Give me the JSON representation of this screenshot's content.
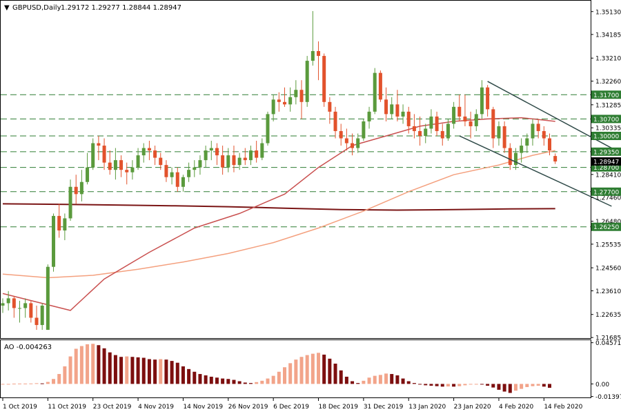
{
  "header": {
    "symbol": "GBPUSD,Daily",
    "ohlc": "1.29172 1.29277 1.28844 1.28947",
    "triangle_glyph": "▼"
  },
  "colors": {
    "bull": "#5a9a3c",
    "bear": "#e2522c",
    "ma_fast": "#c9504f",
    "ma_mid": "#f4a07e",
    "ma_slow": "#7a1414",
    "trend": "#2f4a48",
    "level": "#2e7d32",
    "ao_up": "#f2a48a",
    "ao_down": "#7d0f0f",
    "grid_border": "#000000"
  },
  "chart_data": [
    {
      "type": "candlestick",
      "title": "GBPUSD,Daily",
      "x_dates": [
        "1 Oct 2019",
        "11 Oct 2019",
        "23 Oct 2019",
        "4 Nov 2019",
        "14 Nov 2019",
        "26 Nov 2019",
        "6 Dec 2019",
        "18 Dec 2019",
        "31 Dec 2019",
        "13 Jan 2020",
        "23 Jan 2020",
        "4 Feb 2020",
        "14 Feb 2020"
      ],
      "ylim": [
        1.2166,
        1.3555
      ],
      "y_ticks": [
        "1.35130",
        "1.34185",
        "1.33210",
        "1.32260",
        "1.31285",
        "1.30335",
        "1.29360",
        "1.28410",
        "1.27460",
        "1.26480",
        "1.25535",
        "1.24560",
        "1.23610",
        "1.22635",
        "1.21685"
      ],
      "levels": [
        {
          "value": 1.317,
          "label": "1.31700"
        },
        {
          "value": 1.307,
          "label": "1.30700"
        },
        {
          "value": 1.3,
          "label": "1.30000"
        },
        {
          "value": 1.2935,
          "label": "1.29350"
        },
        {
          "value": 1.287,
          "label": "1.28700"
        },
        {
          "value": 1.2625,
          "label": "1.26250"
        },
        {
          "value": 1.277,
          "label": "1.27700"
        }
      ],
      "current_price": {
        "value": 1.28947,
        "label": "1.28947"
      },
      "ohlc": [
        [
          1.23,
          1.233,
          1.227,
          1.231
        ],
        [
          1.231,
          1.236,
          1.228,
          1.233
        ],
        [
          1.233,
          1.234,
          1.225,
          1.229
        ],
        [
          1.229,
          1.232,
          1.223,
          1.229
        ],
        [
          1.229,
          1.233,
          1.225,
          1.231
        ],
        [
          1.231,
          1.232,
          1.223,
          1.225
        ],
        [
          1.225,
          1.23,
          1.22,
          1.222
        ],
        [
          1.222,
          1.231,
          1.22,
          1.23
        ],
        [
          1.22,
          1.247,
          1.22,
          1.246
        ],
        [
          1.246,
          1.268,
          1.244,
          1.267
        ],
        [
          1.267,
          1.272,
          1.258,
          1.261
        ],
        [
          1.261,
          1.268,
          1.257,
          1.266
        ],
        [
          1.266,
          1.282,
          1.265,
          1.279
        ],
        [
          1.279,
          1.284,
          1.272,
          1.276
        ],
        [
          1.276,
          1.286,
          1.273,
          1.281
        ],
        [
          1.281,
          1.293,
          1.28,
          1.287
        ],
        [
          1.287,
          1.299,
          1.286,
          1.297
        ],
        [
          1.297,
          1.3,
          1.29,
          1.296
        ],
        [
          1.296,
          1.299,
          1.286,
          1.289
        ],
        [
          1.289,
          1.294,
          1.284,
          1.286
        ],
        [
          1.286,
          1.295,
          1.282,
          1.29
        ],
        [
          1.29,
          1.292,
          1.283,
          1.286
        ],
        [
          1.286,
          1.289,
          1.28,
          1.285
        ],
        [
          1.285,
          1.29,
          1.282,
          1.287
        ],
        [
          1.287,
          1.295,
          1.286,
          1.292
        ],
        [
          1.292,
          1.297,
          1.289,
          1.295
        ],
        [
          1.295,
          1.298,
          1.29,
          1.294
        ],
        [
          1.294,
          1.296,
          1.288,
          1.291
        ],
        [
          1.291,
          1.293,
          1.286,
          1.288
        ],
        [
          1.288,
          1.29,
          1.281,
          1.283
        ],
        [
          1.283,
          1.287,
          1.28,
          1.285
        ],
        [
          1.285,
          1.287,
          1.277,
          1.279
        ],
        [
          1.279,
          1.284,
          1.277,
          1.283
        ],
        [
          1.283,
          1.289,
          1.281,
          1.286
        ],
        [
          1.286,
          1.29,
          1.283,
          1.287
        ],
        [
          1.287,
          1.292,
          1.284,
          1.29
        ],
        [
          1.29,
          1.296,
          1.287,
          1.294
        ],
        [
          1.294,
          1.298,
          1.29,
          1.295
        ],
        [
          1.295,
          1.297,
          1.288,
          1.292
        ],
        [
          1.292,
          1.296,
          1.284,
          1.287
        ],
        [
          1.287,
          1.295,
          1.285,
          1.292
        ],
        [
          1.292,
          1.296,
          1.285,
          1.288
        ],
        [
          1.288,
          1.293,
          1.286,
          1.291
        ],
        [
          1.291,
          1.295,
          1.288,
          1.29
        ],
        [
          1.29,
          1.296,
          1.288,
          1.294
        ],
        [
          1.294,
          1.298,
          1.289,
          1.291
        ],
        [
          1.291,
          1.299,
          1.29,
          1.297
        ],
        [
          1.297,
          1.31,
          1.296,
          1.309
        ],
        [
          1.309,
          1.317,
          1.306,
          1.315
        ],
        [
          1.315,
          1.318,
          1.31,
          1.314
        ],
        [
          1.314,
          1.32,
          1.312,
          1.313
        ],
        [
          1.313,
          1.32,
          1.31,
          1.316
        ],
        [
          1.316,
          1.323,
          1.313,
          1.319
        ],
        [
          1.319,
          1.323,
          1.307,
          1.314
        ],
        [
          1.314,
          1.333,
          1.312,
          1.331
        ],
        [
          1.331,
          1.3515,
          1.329,
          1.335
        ],
        [
          1.335,
          1.339,
          1.323,
          1.333
        ],
        [
          1.333,
          1.334,
          1.312,
          1.314
        ],
        [
          1.314,
          1.316,
          1.305,
          1.31
        ],
        [
          1.31,
          1.312,
          1.299,
          1.302
        ],
        [
          1.302,
          1.305,
          1.296,
          1.299
        ],
        [
          1.299,
          1.303,
          1.294,
          1.297
        ],
        [
          1.297,
          1.301,
          1.292,
          1.295
        ],
        [
          1.295,
          1.301,
          1.293,
          1.299
        ],
        [
          1.299,
          1.307,
          1.298,
          1.306
        ],
        [
          1.306,
          1.312,
          1.303,
          1.31
        ],
        [
          1.31,
          1.328,
          1.309,
          1.326
        ],
        [
          1.326,
          1.327,
          1.314,
          1.315
        ],
        [
          1.315,
          1.32,
          1.306,
          1.309
        ],
        [
          1.309,
          1.316,
          1.307,
          1.313
        ],
        [
          1.313,
          1.319,
          1.306,
          1.308
        ],
        [
          1.308,
          1.313,
          1.305,
          1.31
        ],
        [
          1.31,
          1.312,
          1.301,
          1.304
        ],
        [
          1.304,
          1.309,
          1.299,
          1.302
        ],
        [
          1.302,
          1.308,
          1.296,
          1.3
        ],
        [
          1.3,
          1.305,
          1.297,
          1.303
        ],
        [
          1.303,
          1.311,
          1.301,
          1.308
        ],
        [
          1.308,
          1.31,
          1.3,
          1.302
        ],
        [
          1.302,
          1.305,
          1.296,
          1.299
        ],
        [
          1.299,
          1.307,
          1.298,
          1.305
        ],
        [
          1.305,
          1.314,
          1.303,
          1.312
        ],
        [
          1.312,
          1.317,
          1.306,
          1.308
        ],
        [
          1.308,
          1.317,
          1.304,
          1.306
        ],
        [
          1.306,
          1.31,
          1.299,
          1.304
        ],
        [
          1.304,
          1.311,
          1.302,
          1.309
        ],
        [
          1.309,
          1.323,
          1.307,
          1.32
        ],
        [
          1.32,
          1.321,
          1.308,
          1.311
        ],
        [
          1.311,
          1.312,
          1.295,
          1.299
        ],
        [
          1.299,
          1.306,
          1.296,
          1.304
        ],
        [
          1.304,
          1.306,
          1.293,
          1.295
        ],
        [
          1.295,
          1.297,
          1.286,
          1.288
        ],
        [
          1.288,
          1.295,
          1.286,
          1.293
        ],
        [
          1.293,
          1.299,
          1.289,
          1.296
        ],
        [
          1.296,
          1.301,
          1.293,
          1.299
        ],
        [
          1.299,
          1.307,
          1.296,
          1.305
        ],
        [
          1.305,
          1.307,
          1.299,
          1.302
        ],
        [
          1.302,
          1.304,
          1.296,
          1.299
        ],
        [
          1.299,
          1.301,
          1.292,
          1.294
        ],
        [
          1.29172,
          1.29277,
          1.28844,
          1.28947
        ]
      ],
      "ma_fast": [
        [
          0,
          1.235
        ],
        [
          12,
          1.228
        ],
        [
          18,
          1.241
        ],
        [
          26,
          1.252
        ],
        [
          34,
          1.262
        ],
        [
          42,
          1.268
        ],
        [
          50,
          1.276
        ],
        [
          56,
          1.287
        ],
        [
          62,
          1.296
        ],
        [
          68,
          1.3
        ],
        [
          74,
          1.304
        ],
        [
          80,
          1.306
        ],
        [
          86,
          1.307
        ],
        [
          92,
          1.3075
        ],
        [
          98,
          1.306
        ]
      ],
      "ma_mid": [
        [
          0,
          1.243
        ],
        [
          8,
          1.2415
        ],
        [
          16,
          1.2425
        ],
        [
          24,
          1.245
        ],
        [
          32,
          1.248
        ],
        [
          40,
          1.2515
        ],
        [
          48,
          1.256
        ],
        [
          56,
          1.262
        ],
        [
          64,
          1.269
        ],
        [
          72,
          1.277
        ],
        [
          80,
          1.284
        ],
        [
          88,
          1.288
        ],
        [
          94,
          1.292
        ],
        [
          98,
          1.294
        ]
      ],
      "ma_slow": [
        [
          0,
          1.272
        ],
        [
          10,
          1.2718
        ],
        [
          20,
          1.2715
        ],
        [
          30,
          1.2712
        ],
        [
          40,
          1.2708
        ],
        [
          50,
          1.2702
        ],
        [
          60,
          1.2696
        ],
        [
          70,
          1.2694
        ],
        [
          80,
          1.2696
        ],
        [
          90,
          1.2699
        ],
        [
          98,
          1.27
        ]
      ],
      "trendlines": [
        {
          "from": [
            86,
            1.3225
          ],
          "to": [
            108,
            1.295
          ]
        },
        {
          "from": [
            81,
            1.3
          ],
          "to": [
            108,
            1.271
          ]
        }
      ]
    },
    {
      "type": "bar",
      "title": "AO -0.004263",
      "ylim": [
        -0.015,
        0.047
      ],
      "y_ticks": [
        "0.045719",
        "0.00",
        "-0.013971"
      ],
      "values": [
        -0.0002,
        0.0,
        0.0003,
        0.0004,
        0.0004,
        0.0005,
        0.0008,
        0.0006,
        0.0022,
        0.0055,
        0.011,
        0.0195,
        0.0305,
        0.039,
        0.042,
        0.044,
        0.0445,
        0.043,
        0.0395,
        0.035,
        0.032,
        0.03,
        0.0305,
        0.03,
        0.0295,
        0.029,
        0.0275,
        0.027,
        0.0275,
        0.027,
        0.0255,
        0.0235,
        0.0195,
        0.0165,
        0.0135,
        0.011,
        0.0095,
        0.008,
        0.007,
        0.006,
        0.0055,
        0.0045,
        0.003,
        0.0015,
        0.001,
        0.002,
        0.0035,
        0.006,
        0.009,
        0.0135,
        0.0185,
        0.023,
        0.027,
        0.03,
        0.032,
        0.0335,
        0.0345,
        0.0325,
        0.028,
        0.0225,
        0.015,
        0.008,
        0.003,
        0.001,
        0.0035,
        0.007,
        0.009,
        0.01,
        0.0115,
        0.011,
        0.0095,
        0.006,
        0.003,
        0.001,
        -0.0005,
        -0.0015,
        -0.002,
        -0.0025,
        -0.003,
        -0.0028,
        -0.003,
        -0.0025,
        -0.0015,
        -0.0005,
        0.0,
        -0.0005,
        -0.002,
        -0.004,
        -0.0065,
        -0.0085,
        -0.01,
        -0.0075,
        -0.0055,
        -0.0035,
        -0.0025,
        -0.002,
        -0.003,
        -0.0043
      ]
    }
  ]
}
